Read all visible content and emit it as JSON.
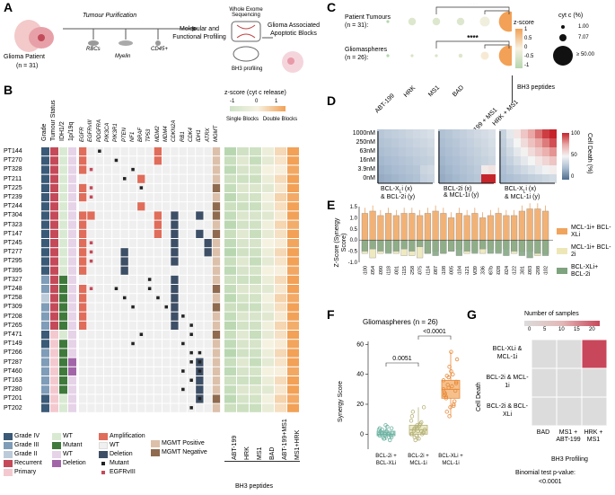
{
  "panels": {
    "A": "A",
    "B": "B",
    "C": "C",
    "D": "D",
    "E": "E",
    "F": "F",
    "G": "G"
  },
  "panelA": {
    "patient": "Glioma Patient",
    "n": "(n = 31)",
    "purification": "Tumour Purification",
    "rbc": "RBCs",
    "myelin": "Myelin",
    "cd45": "CD45+",
    "profiling": "Molecular and Functional Profiling",
    "wes": "Whole Exome Sequencing",
    "bh3p": "BH3 profiling",
    "blocks": "Glioma Associated Apoptotic Blocks"
  },
  "panelB": {
    "col_headers": [
      "Grade",
      "Tumour Status",
      "IDH1/2",
      "1p/19q"
    ],
    "gene_headers": [
      "EGFR",
      "EGFRvIII",
      "PDGFRA",
      "PIK3CA",
      "PIK3R1",
      "PTEN",
      "NF1",
      "BRAF",
      "TP53",
      "MDM2",
      "MDM4",
      "CDKN2A",
      "RB1",
      "CDK4",
      "IDH1",
      "ATRX",
      "MGMT"
    ],
    "patients": [
      "PT144",
      "PT270",
      "PT328",
      "PT211",
      "PT225",
      "PT239",
      "PT244",
      "PT304",
      "PT323",
      "PT147",
      "PT245",
      "PT277",
      "PT295",
      "PT395",
      "PT327",
      "PT248",
      "PT258",
      "PT309",
      "PT208",
      "PT265",
      "PT471",
      "PT149",
      "PT266",
      "PT287",
      "PT460",
      "PT163",
      "PT280",
      "PT201",
      "PT202"
    ],
    "zscore_title": "z-score (cyt c release)",
    "zscale": [
      "-1",
      "0",
      "1"
    ],
    "single_blocks": "Single Blocks",
    "double_blocks": "Double Blocks",
    "single_labels": [
      "ABT-199",
      "HRK",
      "MS1"
    ],
    "double_labels": [
      "BAD",
      "ABT-199+MS1",
      "MS1+HRK"
    ],
    "bh3_label": "BH3 peptides",
    "legend": {
      "grade4": "Grade IV",
      "grade3": "Grade III",
      "grade2": "Grade II",
      "recurrent": "Recurrent",
      "primary": "Primary",
      "wt1": "WT",
      "mutant": "Mutant",
      "wt2": "WT",
      "deletion1": "Deletion",
      "amplification": "Amplification",
      "wt3": "WT",
      "deletion2": "Deletion",
      "mutant_sq": "Mutant",
      "egfrviii": "EGFRvIII",
      "mgmt_pos": "MGMT Positive",
      "mgmt_neg": "MGMT Negative"
    }
  },
  "panelC": {
    "row1": "Patient Tumours",
    "row1n": "(n = 31):",
    "row2": "Gliomaspheres",
    "row2n": "(n = 26):",
    "x_labels": [
      "ABT-199",
      "HRK",
      "MS1",
      "BAD",
      "ABT-199 + MS1",
      "HRK + MS1"
    ],
    "sig": "****",
    "z_title": "z-score",
    "z_ticks": [
      "1",
      "0.5",
      "0",
      "-0.5",
      "-1"
    ],
    "size_title": "cyt c (%)",
    "size_vals": [
      "1.00",
      "7.07",
      "≥ 50.00"
    ],
    "bh3": "BH3 peptides"
  },
  "panelD": {
    "y_ticks": [
      "1000nM",
      "250nM",
      "63nM",
      "16nM",
      "3.9nM",
      "0nM"
    ],
    "x1": "BCL-XL i (x) & BCL-2i (y)",
    "x1a": "BCL-X",
    "x1b": "L",
    "x1c": "i (x)",
    "x1d": "& BCL-2i (y)",
    "x2a": "BCL-2i (x)",
    "x2b": "& MCL-1i (y)",
    "x3a": "BCL-X",
    "x3b": "L",
    "x3c": "i (x)",
    "x3d": "& MCL-1i (y)",
    "legend_title": "Cell Death (%)",
    "legend_ticks": [
      "100",
      "50",
      "0"
    ]
  },
  "panelE": {
    "ylabel": "Z-Score (Synergy Score)",
    "y_ticks": [
      "1.5",
      "1.0",
      "0.5",
      "0.0",
      "-0.5",
      "-1.0"
    ],
    "samples": [
      "GS100",
      "GS054",
      "GS090",
      "GS118",
      "GS001",
      "GS115",
      "GS258",
      "GS075",
      "GS114",
      "GS087",
      "GS108",
      "GS005",
      "GS104",
      "GS121",
      "GBM39",
      "HK336",
      "GS087b",
      "GS028",
      "GS024",
      "GS122",
      "HK301",
      "GS093",
      "GS208",
      "GS102"
    ],
    "legend": [
      "MCL-1i+ BCL-XLi",
      "MCL-1i+ BCL-2i",
      "BCL-XLi+ BCL-2i"
    ]
  },
  "panelF": {
    "title": "Gliomaspheres (n = 26)",
    "ylabel": "Synergy Score",
    "y_ticks": [
      "60",
      "40",
      "20",
      "0"
    ],
    "p1": "0.0051",
    "p2": "<0.0001",
    "groups": [
      "BCL-2i + BCL-XLi",
      "BCL-2i + MCL-1i",
      "BCL-XLi + MCL-1i"
    ]
  },
  "panelG": {
    "legend_title": "Number of samples",
    "legend_ticks": [
      "0",
      "5",
      "10",
      "15",
      "20"
    ],
    "ylabel": "Cell Death",
    "rows": [
      "BCL-XLi & MCL-1i",
      "BCL-2i & MCL-1i",
      "BCL-2i & BCL-XLi"
    ],
    "cols": [
      "BAD",
      "MS1 + ABT-199",
      "HRK + MS1"
    ],
    "xlabel": "BH3 Profiling",
    "binom": "Binomial test p-value:",
    "binom_val": "<0.0001"
  },
  "chart_data": [
    {
      "type": "scatter",
      "title": "Panel C: mean cyt c release by BH3 peptide",
      "categories": [
        "ABT-199",
        "HRK",
        "MS1",
        "BAD",
        "ABT-199 + MS1",
        "HRK + MS1"
      ],
      "series": [
        {
          "name": "Patient Tumours",
          "z": [
            -1,
            -0.4,
            -0.4,
            -0.4,
            -0.1,
            1
          ],
          "cytc": [
            1,
            7,
            7,
            7,
            12,
            50
          ]
        },
        {
          "name": "Gliomaspheres",
          "z": [
            -1,
            -0.5,
            -0.5,
            -0.4,
            0.1,
            1
          ],
          "cytc": [
            1,
            1,
            1,
            2,
            8,
            50
          ]
        }
      ]
    },
    {
      "type": "bar",
      "title": "Panel E: synergy Z-score per gliomasphere",
      "categories": [
        "GS100",
        "GS054",
        "GS090",
        "GS118",
        "GS001",
        "GS115",
        "GS258",
        "GS075",
        "GS114",
        "GS087",
        "GS108",
        "GS005",
        "GS104",
        "GS121",
        "GBM39",
        "HK336",
        "GS087b",
        "GS028",
        "GS024",
        "GS122",
        "HK301",
        "GS093",
        "GS208",
        "GS102"
      ],
      "series": [
        {
          "name": "MCL-1i+ BCL-XLi",
          "values": [
            1.2,
            1.3,
            1.1,
            1.2,
            1.1,
            1.2,
            1.2,
            1.1,
            1.2,
            1.3,
            1.2,
            1.0,
            1.2,
            1.1,
            1.2,
            1.0,
            1.1,
            1.2,
            1.1,
            1.1,
            1.3,
            1.4,
            1.4,
            1.3
          ]
        },
        {
          "name": "MCL-1i+ BCL-2i",
          "values": [
            -0.6,
            -0.8,
            -0.6,
            -0.5,
            -0.6,
            -0.7,
            -0.7,
            -0.8,
            -0.6,
            -0.5,
            -0.6,
            -0.5,
            -0.4,
            -0.6,
            -0.5,
            -0.6,
            -0.4,
            -0.5,
            -0.4,
            -0.6,
            -0.5,
            -0.5,
            -0.7,
            -0.6
          ]
        },
        {
          "name": "BCL-XLi+ BCL-2i",
          "values": [
            -0.5,
            -0.4,
            -0.5,
            -0.6,
            -0.5,
            -0.4,
            -0.5,
            -0.3,
            -0.6,
            -0.7,
            -0.6,
            -0.5,
            -0.7,
            -0.5,
            -0.6,
            -0.4,
            -0.6,
            -0.6,
            -0.7,
            -0.5,
            -0.7,
            -0.8,
            -0.6,
            -0.7
          ]
        }
      ],
      "ylim": [
        -1.0,
        1.5
      ]
    },
    {
      "type": "scatter",
      "title": "Panel F: Gliomaspheres (n = 26) synergy score",
      "categories": [
        "BCL-2i + BCL-XLi",
        "BCL-2i + MCL-1i",
        "BCL-XLi + MCL-1i"
      ],
      "series": [
        {
          "name": "BCL-2i + BCL-XLi",
          "values": [
            0,
            1,
            -3,
            2,
            -2,
            4,
            -1,
            3,
            0,
            5,
            -4,
            1,
            2,
            -2,
            6,
            0,
            -1,
            3,
            1,
            -3,
            2,
            0,
            -2,
            4,
            1,
            -1
          ]
        },
        {
          "name": "BCL-2i + MCL-1i",
          "values": [
            0,
            2,
            5,
            -3,
            8,
            1,
            12,
            -2,
            4,
            6,
            0,
            3,
            15,
            -4,
            2,
            7,
            1,
            9,
            3,
            -1,
            5,
            2,
            18,
            0,
            4,
            6
          ]
        },
        {
          "name": "BCL-XLi + MCL-1i",
          "values": [
            30,
            25,
            38,
            42,
            20,
            35,
            28,
            15,
            45,
            32,
            22,
            50,
            27,
            33,
            18,
            40,
            29,
            36,
            24,
            31,
            55,
            19,
            34,
            26,
            39,
            12
          ]
        }
      ],
      "ylim": [
        -10,
        62
      ],
      "p_values": [
        "0.0051",
        "<0.0001"
      ]
    },
    {
      "type": "heatmap",
      "title": "Panel G: Number of samples",
      "rows": [
        "BCL-XLi & MCL-1i",
        "BCL-2i & MCL-1i",
        "BCL-2i & BCL-XLi"
      ],
      "cols": [
        "BAD",
        "MS1 + ABT-199",
        "HRK + MS1"
      ],
      "values": [
        [
          0,
          0,
          20
        ],
        [
          0,
          0,
          0
        ],
        [
          0,
          0,
          0
        ]
      ]
    }
  ]
}
